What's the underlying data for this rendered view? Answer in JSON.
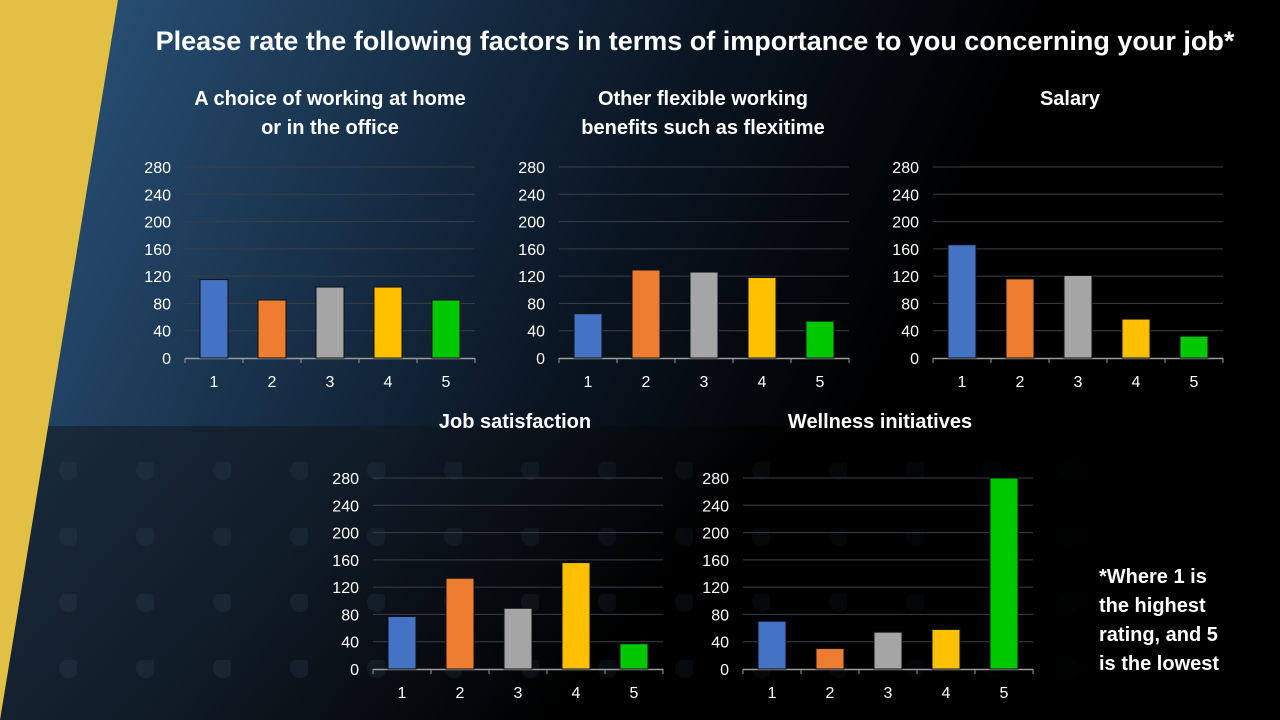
{
  "slide": {
    "title": "Please rate the following factors in terms of importance to you concerning your job*",
    "note_lines": [
      "*Where 1 is",
      "the highest",
      "rating, and 5",
      "is the lowest"
    ]
  },
  "colors": {
    "bar_1": "#4472C4",
    "bar_2": "#ED7D31",
    "bar_3": "#A5A5A5",
    "bar_4": "#FFC000",
    "bar_5": "#00C800",
    "accent_stripe": "#E2C044",
    "background_blue": "#2A5379"
  },
  "chart_data": [
    {
      "type": "bar",
      "title_lines": [
        "A choice of working at home",
        "or in the office"
      ],
      "categories": [
        "1",
        "2",
        "3",
        "4",
        "5"
      ],
      "values": [
        115,
        85,
        104,
        104,
        85
      ],
      "ylim": [
        0,
        280
      ],
      "yticks": [
        "0",
        "40",
        "80",
        "120",
        "160",
        "200",
        "240",
        "280"
      ],
      "grid": true,
      "legend": "none"
    },
    {
      "type": "bar",
      "title_lines": [
        "Other flexible working",
        "benefits such as flexitime"
      ],
      "categories": [
        "1",
        "2",
        "3",
        "4",
        "5"
      ],
      "values": [
        65,
        129,
        126,
        118,
        54
      ],
      "ylim": [
        0,
        280
      ],
      "yticks": [
        "0",
        "40",
        "80",
        "120",
        "160",
        "200",
        "240",
        "280"
      ],
      "grid": true,
      "legend": "none"
    },
    {
      "type": "bar",
      "title_lines": [
        "Salary"
      ],
      "categories": [
        "1",
        "2",
        "3",
        "4",
        "5"
      ],
      "values": [
        166,
        116,
        121,
        57,
        32
      ],
      "ylim": [
        0,
        280
      ],
      "yticks": [
        "0",
        "40",
        "80",
        "120",
        "160",
        "200",
        "240",
        "280"
      ],
      "grid": true,
      "legend": "none"
    },
    {
      "type": "bar",
      "title_lines": [
        "Job satisfaction"
      ],
      "categories": [
        "1",
        "2",
        "3",
        "4",
        "5"
      ],
      "values": [
        77,
        133,
        89,
        156,
        37
      ],
      "ylim": [
        0,
        280
      ],
      "yticks": [
        "0",
        "40",
        "80",
        "120",
        "160",
        "200",
        "240",
        "280"
      ],
      "grid": true,
      "legend": "none"
    },
    {
      "type": "bar",
      "title_lines": [
        "Wellness initiatives"
      ],
      "categories": [
        "1",
        "2",
        "3",
        "4",
        "5"
      ],
      "values": [
        70,
        30,
        54,
        58,
        282
      ],
      "ylim": [
        0,
        280
      ],
      "yticks": [
        "0",
        "40",
        "80",
        "120",
        "160",
        "200",
        "240",
        "280"
      ],
      "grid": true,
      "legend": "none"
    }
  ]
}
